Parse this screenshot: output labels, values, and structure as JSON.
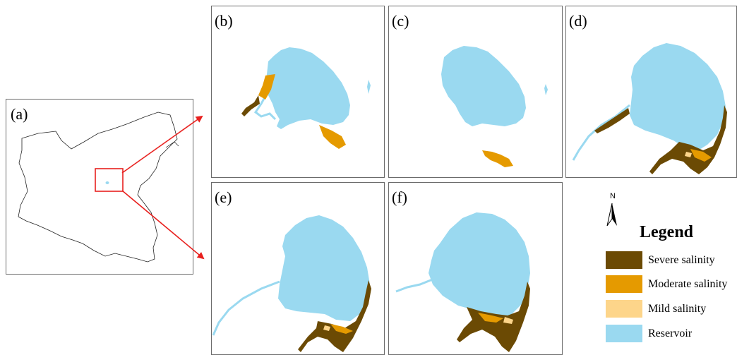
{
  "panels": {
    "a": {
      "label": "(a)"
    },
    "b": {
      "label": "(b)"
    },
    "c": {
      "label": "(c)"
    },
    "d": {
      "label": "(d)"
    },
    "e": {
      "label": "(e)"
    },
    "f": {
      "label": "(f)"
    }
  },
  "north_arrow": {
    "label": "N"
  },
  "legend": {
    "title": "Legend",
    "items": [
      {
        "label": "Severe salinity",
        "color": "#6b4a04"
      },
      {
        "label": "Moderate salinity",
        "color": "#e59a00"
      },
      {
        "label": "Mild salinity",
        "color": "#fdd58a"
      },
      {
        "label": "Reservoir",
        "color": "#9ad9f0"
      }
    ]
  },
  "colors": {
    "reservoir": "#9ad9f0",
    "severe": "#6b4a04",
    "moderate": "#e59a00",
    "mild": "#fdd58a",
    "highlight": "#e8201e",
    "frame": "#6b6b6b"
  }
}
